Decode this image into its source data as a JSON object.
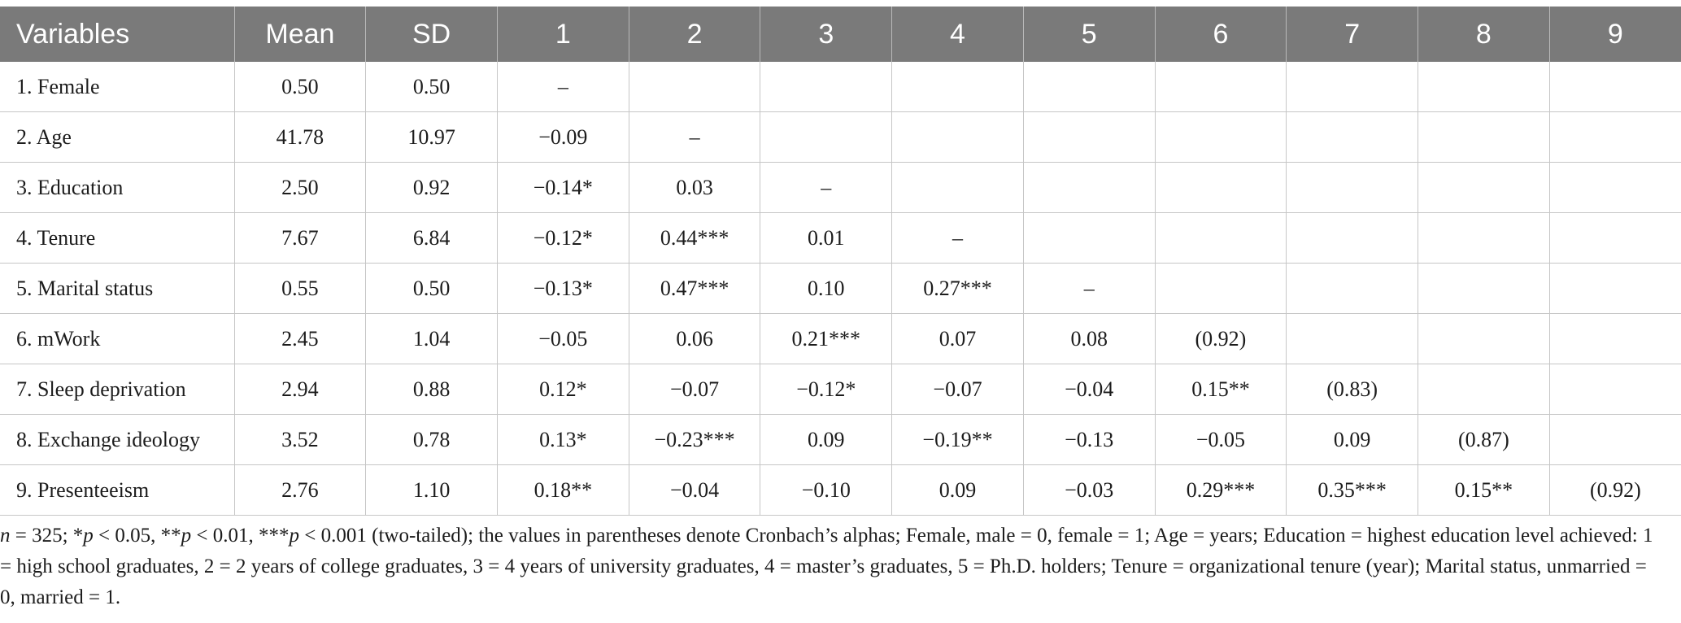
{
  "table": {
    "headers": [
      "Variables",
      "Mean",
      "SD",
      "1",
      "2",
      "3",
      "4",
      "5",
      "6",
      "7",
      "8",
      "9"
    ],
    "rows": [
      [
        "1. Female",
        "0.50",
        "0.50",
        "–",
        "",
        "",
        "",
        "",
        "",
        "",
        "",
        ""
      ],
      [
        "2. Age",
        "41.78",
        "10.97",
        "−0.09",
        "–",
        "",
        "",
        "",
        "",
        "",
        "",
        ""
      ],
      [
        "3. Education",
        "2.50",
        "0.92",
        "−0.14*",
        "0.03",
        "–",
        "",
        "",
        "",
        "",
        "",
        ""
      ],
      [
        "4. Tenure",
        "7.67",
        "6.84",
        "−0.12*",
        "0.44***",
        "0.01",
        "–",
        "",
        "",
        "",
        "",
        ""
      ],
      [
        "5. Marital status",
        "0.55",
        "0.50",
        "−0.13*",
        "0.47***",
        "0.10",
        "0.27***",
        "–",
        "",
        "",
        "",
        ""
      ],
      [
        "6. mWork",
        "2.45",
        "1.04",
        "−0.05",
        "0.06",
        "0.21***",
        "0.07",
        "0.08",
        "(0.92)",
        "",
        "",
        ""
      ],
      [
        "7. Sleep deprivation",
        "2.94",
        "0.88",
        "0.12*",
        "−0.07",
        "−0.12*",
        "−0.07",
        "−0.04",
        "0.15**",
        "(0.83)",
        "",
        ""
      ],
      [
        "8. Exchange ideology",
        "3.52",
        "0.78",
        "0.13*",
        "−0.23***",
        "0.09",
        "−0.19**",
        "−0.13",
        "−0.05",
        "0.09",
        "(0.87)",
        ""
      ],
      [
        "9. Presenteeism",
        "2.76",
        "1.10",
        "0.18**",
        "−0.04",
        "−0.10",
        "0.09",
        "−0.03",
        "0.29***",
        "0.35***",
        "0.15**",
        "(0.92)"
      ]
    ]
  },
  "note": {
    "n_italic": "n",
    "t1": " = 325; *",
    "p1": "p",
    "t2": " < 0.05, **",
    "p2": "p",
    "t3": " < 0.01, ***",
    "p3": "p",
    "t4": " < 0.001 (two-tailed); the values in parentheses denote Cronbach’s alphas; Female, male = 0, female = 1; Age = years; Education = highest education level achieved: 1 = high school graduates, 2 = 2 years of college graduates, 3 = 4 years of university graduates, 4 = master’s graduates, 5 = Ph.D. holders; Tenure = organizational tenure (year); Marital status, unmarried = 0, married = 1."
  }
}
